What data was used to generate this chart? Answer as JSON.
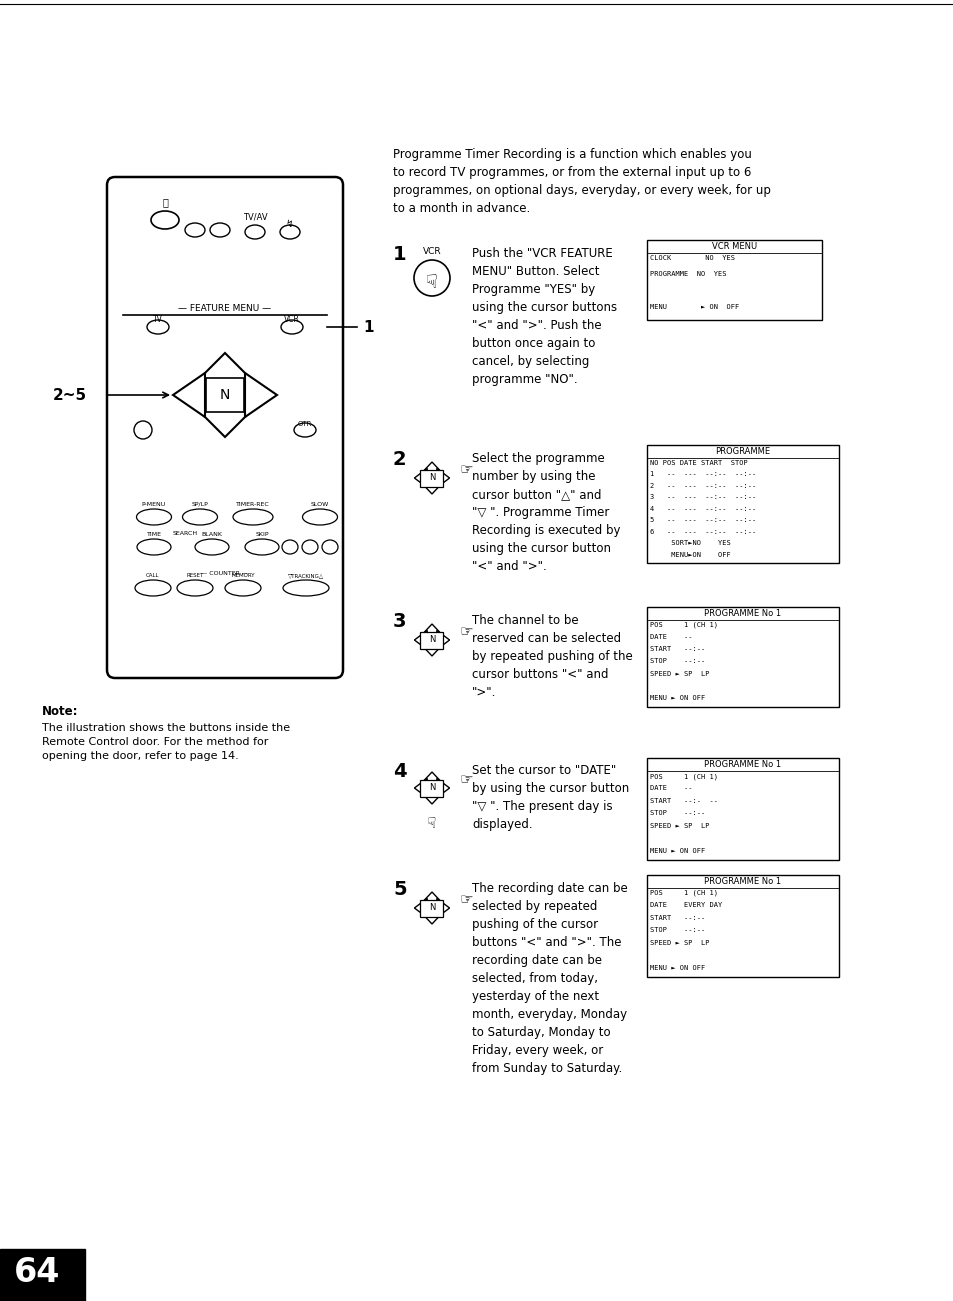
{
  "page_number": "64",
  "intro_text": "Programme Timer Recording is a function which enables you\nto record TV programmes, or from the external input up to 6\nprogrammes, on optional days, everyday, or every week, for up\nto a month in advance.",
  "note_title": "Note:",
  "note_text": "The illustration shows the buttons inside the\nRemote Control door. For the method for\nopening the door, refer to page 14.",
  "steps": [
    {
      "number": "1",
      "text": "Push the \"VCR FEATURE\nMENU\" Button. Select\nProgramme \"YES\" by\nusing the cursor buttons\n\"<\" and \">\". Push the\nbutton once again to\ncancel, by selecting\nprogramme \"NO\".",
      "menu_title": "VCR MENU",
      "menu_lines": [
        "CLOCK        NO  YES",
        "PROGRAMME  NO  YES",
        "",
        "MENU        ► ON  OFF"
      ]
    },
    {
      "number": "2",
      "text": "Select the programme\nnumber by using the\ncursor button \"△\" and\n\"▽ \". Programme Timer\nRecording is executed by\nusing the cursor button\n\"<\" and \">\".",
      "menu_title": "PROGRAMME",
      "menu_lines": [
        "NO POS DATE START  STOP",
        "1   --  ---  --:--  --:--",
        "2   --  ---  --:--  --:--",
        "3   --  ---  --:--  --:--",
        "4   --  ---  --:--  --:--",
        "5   --  ---  --:--  --:--",
        "6   --  ---  --:--  --:--",
        "     SORT►NO    YES",
        "     MENU►ON    OFF"
      ]
    },
    {
      "number": "3",
      "text": "The channel to be\nreserved can be selected\nby repeated pushing of the\ncursor buttons \"<\" and\n\">\".",
      "menu_title": "PROGRAMME No 1",
      "menu_lines": [
        "POS     1 (CH 1)",
        "DATE    --",
        "START   --:--",
        "STOP    --:--",
        "SPEED ► SP  LP",
        "",
        "MENU ► ON OFF"
      ]
    },
    {
      "number": "4",
      "text": "Set the cursor to \"DATE\"\nby using the cursor button\n\"▽ \". The present day is\ndisplayed.",
      "menu_title": "PROGRAMME No 1",
      "menu_lines": [
        "POS     1 (CH 1)",
        "DATE    --",
        "START   --:-  --",
        "STOP    --:--",
        "SPEED ► SP  LP",
        "",
        "MENU ► ON OFF"
      ]
    },
    {
      "number": "5",
      "text": "The recording date can be\nselected by repeated\npushing of the cursor\nbuttons \"<\" and \">\". The\nrecording date can be\nselected, from today,\nyesterday of the next\nmonth, everyday, Monday\nto Saturday, Monday to\nFriday, every week, or\nfrom Sunday to Saturday.",
      "menu_title": "PROGRAMME No 1",
      "menu_lines": [
        "POS     1 (CH 1)",
        "DATE    EVERY DAY",
        "START   --:--",
        "STOP    --:--",
        "SPEED ► SP  LP",
        "",
        "MENU ► ON OFF"
      ]
    }
  ]
}
